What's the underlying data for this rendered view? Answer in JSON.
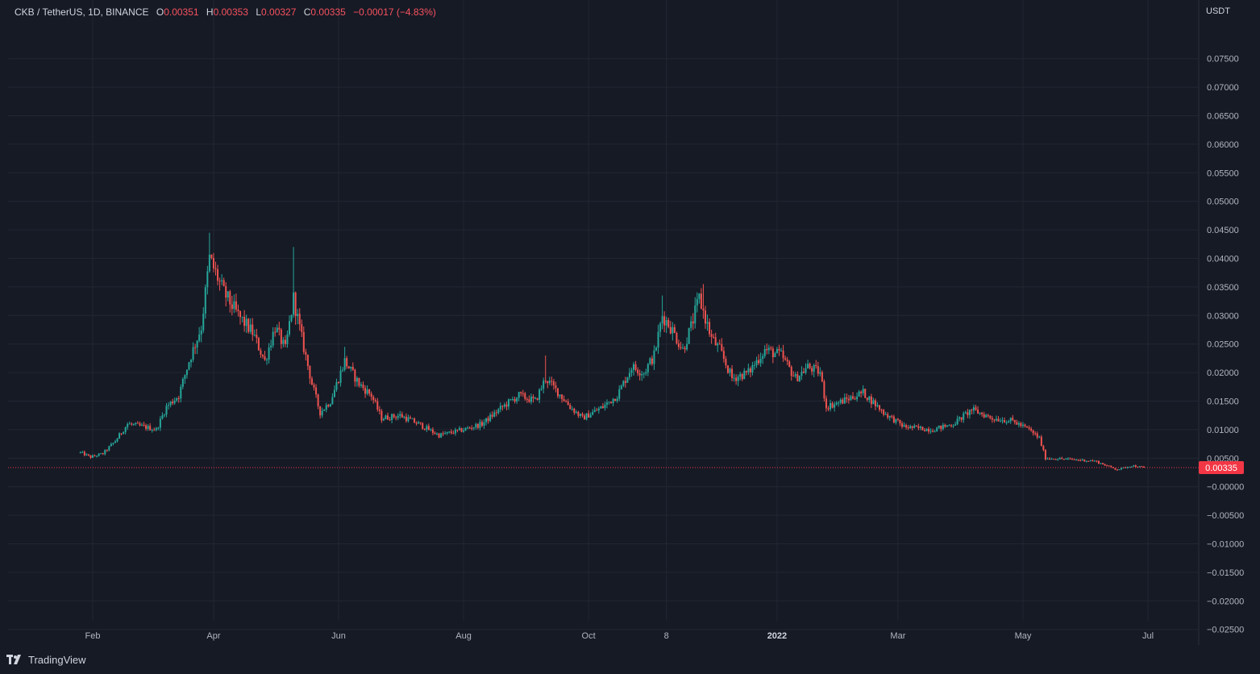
{
  "legend": {
    "symbol": "CKB / TetherUS, 1D, BINANCE",
    "open_label": "O",
    "open": "0.00351",
    "high_label": "H",
    "high": "0.00353",
    "low_label": "L",
    "low": "0.00327",
    "close_label": "C",
    "close": "0.00335",
    "change": "−0.00017 (−4.83%)"
  },
  "currency": "USDT",
  "last_price_label": "0.00335",
  "footer": {
    "brand": "TradingView"
  },
  "colors": {
    "background": "#161a25",
    "grid": "#222633",
    "up": "#26a69a",
    "down": "#ef5350",
    "last_price": "#f23645",
    "axis_text": "#b2b5be"
  },
  "chart_data": {
    "type": "candlestick",
    "title": "CKB / TetherUS, 1D, BINANCE",
    "ylabel": "USDT",
    "ylim": [
      -0.027,
      0.078
    ],
    "y_ticks": [
      "0.07500",
      "0.07000",
      "0.06500",
      "0.06000",
      "0.05500",
      "0.05000",
      "0.04500",
      "0.04000",
      "0.03500",
      "0.03000",
      "0.02500",
      "0.02000",
      "0.01500",
      "0.01000",
      "0.00500",
      "−0.00000",
      "−0.00500",
      "−0.01000",
      "−0.01500",
      "−0.02000",
      "−0.02500"
    ],
    "x_ticks": [
      {
        "label": "Feb",
        "date": "2021-02-01"
      },
      {
        "label": "Apr",
        "date": "2021-04-01"
      },
      {
        "label": "Jun",
        "date": "2021-06-01"
      },
      {
        "label": "Aug",
        "date": "2021-08-01"
      },
      {
        "label": "Oct",
        "date": "2021-10-01"
      },
      {
        "label": "8",
        "date": "2021-11-08"
      },
      {
        "label": "2022",
        "date": "2022-01-01",
        "bold": true
      },
      {
        "label": "Mar",
        "date": "2022-03-01"
      },
      {
        "label": "May",
        "date": "2022-05-01"
      },
      {
        "label": "Jul",
        "date": "2022-07-01"
      }
    ],
    "last_price": 0.00335,
    "start_date": "2021-01-26",
    "end_date": "2022-06-29",
    "path_points": [
      [
        "2021-01-26",
        0.006
      ],
      [
        "2021-01-31",
        0.0052
      ],
      [
        "2021-02-06",
        0.0058
      ],
      [
        "2021-02-12",
        0.008
      ],
      [
        "2021-02-18",
        0.011
      ],
      [
        "2021-02-26",
        0.0105
      ],
      [
        "2021-03-04",
        0.01
      ],
      [
        "2021-03-09",
        0.014
      ],
      [
        "2021-03-15",
        0.016
      ],
      [
        "2021-03-20",
        0.022
      ],
      [
        "2021-03-26",
        0.028
      ],
      [
        "2021-03-30",
        0.04
      ],
      [
        "2021-04-06",
        0.034
      ],
      [
        "2021-04-13",
        0.03
      ],
      [
        "2021-04-20",
        0.027
      ],
      [
        "2021-04-26",
        0.022
      ],
      [
        "2021-05-01",
        0.028
      ],
      [
        "2021-05-06",
        0.024
      ],
      [
        "2021-05-10",
        0.033
      ],
      [
        "2021-05-14",
        0.026
      ],
      [
        "2021-05-19",
        0.018
      ],
      [
        "2021-05-23",
        0.013
      ],
      [
        "2021-05-28",
        0.015
      ],
      [
        "2021-06-04",
        0.022
      ],
      [
        "2021-06-11",
        0.018
      ],
      [
        "2021-06-17",
        0.016
      ],
      [
        "2021-06-22",
        0.012
      ],
      [
        "2021-07-01",
        0.0125
      ],
      [
        "2021-07-10",
        0.011
      ],
      [
        "2021-07-20",
        0.009
      ],
      [
        "2021-08-01",
        0.01
      ],
      [
        "2021-08-10",
        0.011
      ],
      [
        "2021-08-20",
        0.014
      ],
      [
        "2021-08-28",
        0.016
      ],
      [
        "2021-09-05",
        0.015
      ],
      [
        "2021-09-10",
        0.019
      ],
      [
        "2021-09-15",
        0.017
      ],
      [
        "2021-09-22",
        0.014
      ],
      [
        "2021-09-28",
        0.012
      ],
      [
        "2021-10-08",
        0.014
      ],
      [
        "2021-10-15",
        0.016
      ],
      [
        "2021-10-22",
        0.021
      ],
      [
        "2021-10-28",
        0.02
      ],
      [
        "2021-11-02",
        0.023
      ],
      [
        "2021-11-06",
        0.03
      ],
      [
        "2021-11-10",
        0.028
      ],
      [
        "2021-11-16",
        0.024
      ],
      [
        "2021-11-20",
        0.028
      ],
      [
        "2021-11-24",
        0.033
      ],
      [
        "2021-11-30",
        0.026
      ],
      [
        "2021-12-04",
        0.024
      ],
      [
        "2021-12-10",
        0.019
      ],
      [
        "2021-12-18",
        0.02
      ],
      [
        "2021-12-26",
        0.024
      ],
      [
        "2022-01-03",
        0.023
      ],
      [
        "2022-01-10",
        0.019
      ],
      [
        "2022-01-16",
        0.021
      ],
      [
        "2022-01-22",
        0.02
      ],
      [
        "2022-01-25",
        0.014
      ],
      [
        "2022-02-02",
        0.015
      ],
      [
        "2022-02-12",
        0.0165
      ],
      [
        "2022-02-22",
        0.013
      ],
      [
        "2022-03-04",
        0.0105
      ],
      [
        "2022-03-18",
        0.01
      ],
      [
        "2022-03-28",
        0.011
      ],
      [
        "2022-04-06",
        0.0135
      ],
      [
        "2022-04-16",
        0.012
      ],
      [
        "2022-04-26",
        0.0115
      ],
      [
        "2022-05-04",
        0.01
      ],
      [
        "2022-05-09",
        0.0085
      ],
      [
        "2022-05-12",
        0.005
      ],
      [
        "2022-05-24",
        0.0048
      ],
      [
        "2022-06-05",
        0.0045
      ],
      [
        "2022-06-16",
        0.003
      ],
      [
        "2022-06-23",
        0.0037
      ],
      [
        "2022-06-29",
        0.00335
      ]
    ],
    "spikes": [
      [
        "2021-03-30",
        0.0445
      ],
      [
        "2021-05-10",
        0.042
      ],
      [
        "2021-11-26",
        0.0355
      ],
      [
        "2021-11-06",
        0.0335
      ],
      [
        "2021-06-04",
        0.0245
      ],
      [
        "2021-09-10",
        0.023
      ]
    ]
  }
}
